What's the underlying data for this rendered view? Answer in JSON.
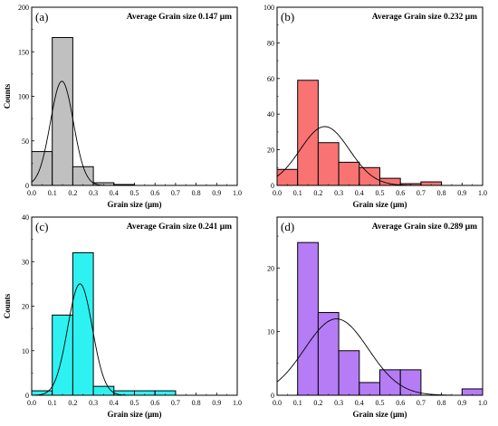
{
  "chart_data": [
    {
      "type": "bar",
      "panel_label": "(a)",
      "annotation": "Average Grain size 0.147 μm",
      "xlabel": "Grain size (μm)",
      "ylabel": "Counts",
      "xlim": [
        0,
        1.0
      ],
      "ylim": [
        0,
        200
      ],
      "x_ticks": [
        0.0,
        0.1,
        0.2,
        0.3,
        0.4,
        0.5,
        0.6,
        0.7,
        0.8,
        0.9,
        1.0
      ],
      "x_tick_labels": [
        "0.0",
        "0.1",
        "0.2",
        "0.3",
        "0.4",
        "0.5",
        "0.6",
        "0.7",
        "0.8",
        "0.9",
        "1.0"
      ],
      "y_ticks": [
        0,
        50,
        100,
        150,
        200
      ],
      "y_tick_labels": [
        "0",
        "50",
        "100",
        "150",
        "200"
      ],
      "bin_edges": [
        0.0,
        0.1,
        0.2,
        0.3,
        0.4,
        0.5
      ],
      "values": [
        38,
        166,
        21,
        3,
        1
      ],
      "bar_color": "#c0c0c0",
      "fit_curve": {
        "type": "gaussian",
        "peak": 117,
        "mean": 0.147,
        "sigma": 0.056
      },
      "grid": false
    },
    {
      "type": "bar",
      "panel_label": "(b)",
      "annotation": "Average Grain size 0.232 μm",
      "xlabel": "Grain size (μm)",
      "ylabel": "",
      "xlim": [
        0,
        1.0
      ],
      "ylim": [
        0,
        100
      ],
      "x_ticks": [
        0.0,
        0.1,
        0.2,
        0.3,
        0.4,
        0.5,
        0.6,
        0.7,
        0.8,
        0.9,
        1.0
      ],
      "x_tick_labels": [
        "0.0",
        "0.1",
        "0.2",
        "0.3",
        "0.4",
        "0.5",
        "0.6",
        "0.7",
        "0.8",
        "0.9",
        "1.0"
      ],
      "y_ticks": [
        0,
        20,
        40,
        60,
        80,
        100
      ],
      "y_tick_labels": [
        "0",
        "20",
        "40",
        "60",
        "80",
        "100"
      ],
      "bin_edges": [
        0.0,
        0.1,
        0.2,
        0.3,
        0.4,
        0.5,
        0.6,
        0.7,
        0.8
      ],
      "values": [
        9,
        59,
        24,
        13,
        10,
        4,
        1,
        2
      ],
      "bar_color": "#f97373",
      "fit_curve": {
        "type": "gaussian",
        "peak": 33,
        "mean": 0.232,
        "sigma": 0.12
      },
      "grid": false
    },
    {
      "type": "bar",
      "panel_label": "(c)",
      "annotation": "Average Grain size 0.241 μm",
      "xlabel": "Grain size (μm)",
      "ylabel": "Counts",
      "xlim": [
        0,
        1.0
      ],
      "ylim": [
        0,
        40
      ],
      "x_ticks": [
        0.0,
        0.1,
        0.2,
        0.3,
        0.4,
        0.5,
        0.6,
        0.7,
        0.8,
        0.9,
        1.0
      ],
      "x_tick_labels": [
        "0.0",
        "0.1",
        "0.2",
        "0.3",
        "0.4",
        "0.5",
        "0.6",
        "0.7",
        "0.8",
        "0.9",
        "1.0"
      ],
      "y_ticks": [
        0,
        10,
        20,
        30,
        40
      ],
      "y_tick_labels": [
        "0",
        "10",
        "20",
        "30",
        "40"
      ],
      "bin_edges": [
        0.0,
        0.1,
        0.2,
        0.3,
        0.4,
        0.5,
        0.6,
        0.7
      ],
      "values": [
        1,
        18,
        32,
        2,
        1,
        1,
        1
      ],
      "bar_color": "#2ef2f2",
      "fit_curve": {
        "type": "gaussian",
        "peak": 25,
        "mean": 0.235,
        "sigma": 0.06
      },
      "grid": false
    },
    {
      "type": "bar",
      "panel_label": "(d)",
      "annotation": "Average Grain size 0.289 μm",
      "xlabel": "Grain size (μm)",
      "ylabel": "",
      "xlim": [
        0,
        1.0
      ],
      "ylim": [
        0,
        28
      ],
      "x_ticks": [
        0.0,
        0.1,
        0.2,
        0.3,
        0.4,
        0.5,
        0.6,
        0.7,
        0.8,
        0.9,
        1.0
      ],
      "x_tick_labels": [
        "0.0",
        "0.1",
        "0.2",
        "0.3",
        "0.4",
        "0.5",
        "0.6",
        "0.7",
        "0.8",
        "0.9",
        "1.0"
      ],
      "y_ticks": [
        0,
        10,
        20
      ],
      "y_tick_labels": [
        "0",
        "10",
        "20"
      ],
      "bin_edges": [
        0.1,
        0.2,
        0.3,
        0.4,
        0.5,
        0.6,
        0.7,
        0.8,
        0.9,
        1.0
      ],
      "values": [
        24,
        13,
        7,
        2,
        4,
        4,
        0,
        0,
        1
      ],
      "bar_color": "#b57cf5",
      "fit_curve": {
        "type": "gaussian",
        "peak": 12,
        "mean": 0.289,
        "sigma": 0.155
      },
      "grid": false
    }
  ]
}
